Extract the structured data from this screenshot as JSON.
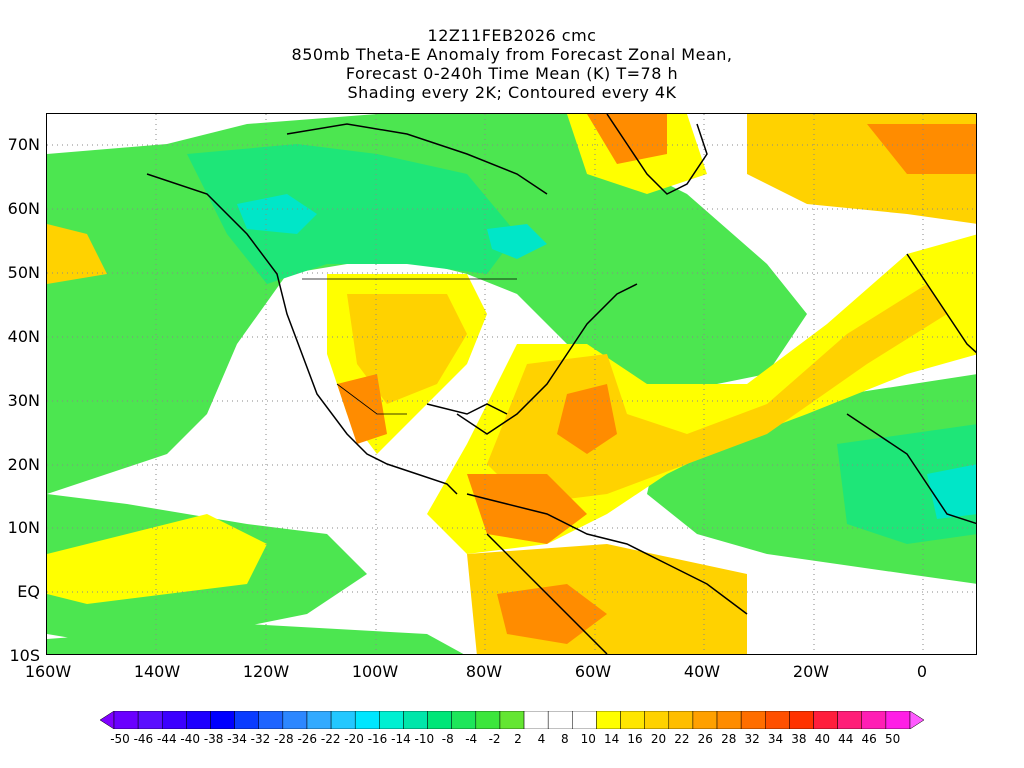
{
  "title": {
    "line1": "12Z11FEB2026 cmc",
    "line2": "850mb Theta-E Anomaly from Forecast Zonal Mean,",
    "line3": "Forecast 0-240h Time Mean (K) T=78 h",
    "line4": "Shading every 2K; Contoured every 4K"
  },
  "lat_labels": [
    "70N",
    "60N",
    "50N",
    "40N",
    "30N",
    "20N",
    "10N",
    "EQ",
    "10S"
  ],
  "lon_labels": [
    "160W",
    "140W",
    "120W",
    "100W",
    "80W",
    "60W",
    "40W",
    "20W",
    "0"
  ],
  "colorbar": {
    "labels": [
      "-50",
      "-46",
      "-44",
      "-40",
      "-38",
      "-34",
      "-32",
      "-28",
      "-26",
      "-22",
      "-20",
      "-16",
      "-14",
      "-10",
      "-8",
      "-4",
      "-2",
      "2",
      "4",
      "8",
      "10",
      "14",
      "16",
      "20",
      "22",
      "26",
      "28",
      "32",
      "34",
      "38",
      "40",
      "44",
      "46",
      "50"
    ],
    "colors": [
      "#7f00ff",
      "#6a00ff",
      "#5a0fff",
      "#3c00ff",
      "#1e00ff",
      "#0000ff",
      "#0a3cff",
      "#1e64ff",
      "#2d87ff",
      "#32aaff",
      "#23c8ff",
      "#00e6ff",
      "#00f0d2",
      "#00e6aa",
      "#00e678",
      "#1ee65a",
      "#3ce63c",
      "#64e632",
      "#ffffff",
      "#ffffff",
      "#ffffff",
      "#ffff00",
      "#ffe600",
      "#ffd200",
      "#ffbe00",
      "#ffa000",
      "#ff8c00",
      "#ff6e00",
      "#ff5000",
      "#ff3200",
      "#ff1e3c",
      "#ff1e78",
      "#ff1eb4",
      "#ff1ee6",
      "#ff5aff"
    ]
  },
  "map": {
    "lon_range": [
      -160,
      10
    ],
    "lat_range": [
      -10,
      75
    ],
    "colors": {
      "strong_negative": "#00e6c8",
      "negative": "#1ee678",
      "weak_negative": "#4ce650",
      "neutral": "#ffffff",
      "weak_positive": "#ffff00",
      "positive": "#ffd200",
      "strong_positive": "#ff8c00",
      "very_strong_positive": "#ff6400",
      "coast": "#000000"
    }
  }
}
